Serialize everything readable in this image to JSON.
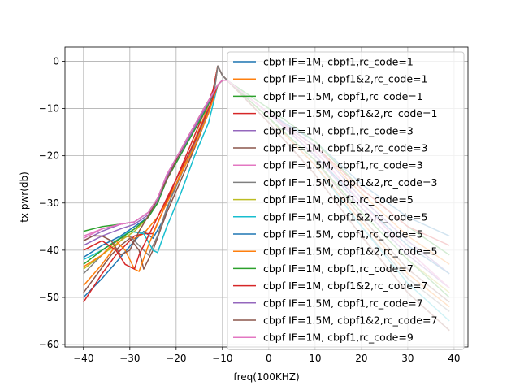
{
  "chart_data": {
    "type": "line",
    "xlabel": "freq(100KHZ)",
    "ylabel": "tx pwr(db)",
    "xlim": [
      -44,
      43
    ],
    "ylim": [
      -60.5,
      3
    ],
    "xticks": [
      -40,
      -30,
      -20,
      -10,
      0,
      10,
      20,
      30,
      40
    ],
    "yticks": [
      0,
      -10,
      -20,
      -30,
      -40,
      -50,
      -60
    ],
    "grid": true,
    "legend_position": "upper right",
    "series": [
      {
        "name": "cbpf IF=1M, cbpf1,rc_code=1",
        "color": "#1f77b4",
        "x": [
          -40,
          -36,
          -32,
          -29,
          -27,
          -25,
          -23,
          -20,
          -17,
          -14,
          -12,
          -11,
          -10,
          -9,
          0,
          10,
          20,
          30,
          39
        ],
        "y": [
          -50,
          -46,
          -41.5,
          -38,
          -36,
          -37.5,
          -34,
          -26,
          -19,
          -12,
          -6,
          -1,
          -3,
          -4,
          -11,
          -17,
          -26,
          -33,
          -37
        ]
      },
      {
        "name": "cbpf IF=1M, cbpf1&2,rc_code=1",
        "color": "#ff7f0e",
        "x": [
          -40,
          -36,
          -33,
          -31,
          -29,
          -27,
          -24,
          -20,
          -17,
          -14,
          -12,
          -11,
          -10,
          -9,
          0,
          10,
          20,
          30,
          39
        ],
        "y": [
          -47.5,
          -43,
          -39,
          -37,
          -37.5,
          -36.5,
          -33,
          -26,
          -19,
          -12,
          -6,
          -1,
          -3,
          -4,
          -11,
          -18,
          -28,
          -37,
          -43
        ]
      },
      {
        "name": "cbpf IF=1.5M, cbpf1,rc_code=1",
        "color": "#2ca02c",
        "x": [
          -40,
          -36,
          -32,
          -29,
          -26,
          -24,
          -22,
          -18,
          -14,
          -11,
          -10,
          -9,
          0,
          10,
          20,
          30,
          39
        ],
        "y": [
          -36,
          -35,
          -34.5,
          -34,
          -32,
          -29,
          -24,
          -17,
          -10,
          -5,
          -4,
          -4,
          -10,
          -17,
          -27,
          -35,
          -41
        ]
      },
      {
        "name": "cbpf IF=1.5M, cbpf1&2,rc_code=1",
        "color": "#d62728",
        "x": [
          -40,
          -38,
          -36,
          -33,
          -31,
          -29,
          -27,
          -25,
          -23,
          -20,
          -17,
          -14,
          -12,
          -11,
          -10,
          -9,
          0,
          10,
          20,
          30,
          39
        ],
        "y": [
          -51,
          -48,
          -45,
          -41,
          -39,
          -37,
          -36.5,
          -36.5,
          -32,
          -25,
          -18,
          -11,
          -6,
          -1,
          -3,
          -4,
          -11,
          -18,
          -27,
          -35,
          -39
        ]
      },
      {
        "name": "cbpf IF=1M, cbpf1,rc_code=3",
        "color": "#9467bd",
        "x": [
          -40,
          -36,
          -32,
          -29,
          -26,
          -24,
          -22,
          -18,
          -14,
          -11,
          -10,
          -9,
          0,
          10,
          20,
          30,
          39
        ],
        "y": [
          -38,
          -36,
          -34.5,
          -34,
          -32,
          -29,
          -24,
          -17,
          -10,
          -5,
          -4,
          -4,
          -11,
          -18,
          -29,
          -38,
          -45
        ]
      },
      {
        "name": "cbpf IF=1M, cbpf1&2,rc_code=3",
        "color": "#8c564b",
        "x": [
          -40,
          -37,
          -34,
          -32,
          -30,
          -28,
          -27,
          -25,
          -22,
          -18,
          -15,
          -12,
          -11,
          -10,
          -9,
          0,
          10,
          20,
          30,
          39
        ],
        "y": [
          -49,
          -45,
          -41,
          -39,
          -37.5,
          -40,
          -44,
          -40,
          -32,
          -23,
          -16,
          -8,
          -1,
          -3,
          -4,
          -12,
          -21,
          -33,
          -44,
          -51
        ]
      },
      {
        "name": "cbpf IF=1.5M, cbpf1,rc_code=3",
        "color": "#e377c2",
        "x": [
          -40,
          -36,
          -32,
          -29,
          -26,
          -24,
          -22,
          -18,
          -14,
          -11,
          -10,
          -9,
          0,
          10,
          20,
          30,
          39
        ],
        "y": [
          -37.5,
          -35.5,
          -34.5,
          -34,
          -32,
          -29,
          -24,
          -17,
          -10,
          -5,
          -4,
          -4,
          -11,
          -19,
          -30,
          -40,
          -48
        ]
      },
      {
        "name": "cbpf IF=1.5M, cbpf1&2,rc_code=3",
        "color": "#7f7f7f",
        "x": [
          -40,
          -37,
          -34,
          -32,
          -30,
          -28,
          -26,
          -24,
          -22,
          -18,
          -15,
          -12,
          -11,
          -10,
          -9,
          0,
          10,
          20,
          30,
          39
        ],
        "y": [
          -45,
          -42,
          -39,
          -37.5,
          -37,
          -39,
          -41,
          -37,
          -31,
          -22,
          -15,
          -8,
          -1,
          -3,
          -4,
          -12,
          -22,
          -35,
          -46,
          -53
        ]
      },
      {
        "name": "cbpf IF=1M, cbpf1,rc_code=5",
        "color": "#bcbd22",
        "x": [
          -40,
          -36,
          -32,
          -29,
          -26,
          -24,
          -22,
          -18,
          -14,
          -11,
          -10,
          -9,
          0,
          10,
          20,
          30,
          39
        ],
        "y": [
          -44,
          -41,
          -38,
          -36,
          -33,
          -30,
          -25,
          -18,
          -11,
          -5,
          -4,
          -4,
          -12,
          -21,
          -32,
          -42,
          -49
        ]
      },
      {
        "name": "cbpf IF=1M, cbpf1&2,rc_code=5",
        "color": "#17becf",
        "x": [
          -40,
          -36,
          -33,
          -30,
          -27,
          -25,
          -24,
          -22,
          -19,
          -16,
          -13,
          -11,
          -10,
          -9,
          0,
          10,
          20,
          30,
          39
        ],
        "y": [
          -42,
          -40,
          -38,
          -36,
          -36.5,
          -40,
          -40.5,
          -35,
          -28,
          -20,
          -13,
          -5,
          -4,
          -4,
          -12,
          -22,
          -35,
          -47,
          -55
        ]
      },
      {
        "name": "cbpf IF=1.5M, cbpf1,rc_code=5",
        "color": "#1f77b4",
        "x": [
          -40,
          -36,
          -32,
          -29,
          -26,
          -24,
          -22,
          -18,
          -14,
          -11,
          -10,
          -9,
          0,
          10,
          20,
          30,
          39
        ],
        "y": [
          -41.5,
          -39,
          -37,
          -35,
          -33,
          -30,
          -25,
          -18,
          -11,
          -5,
          -4,
          -4,
          -11,
          -20,
          -30,
          -39,
          -45
        ]
      },
      {
        "name": "cbpf IF=1.5M, cbpf1&2,rc_code=5",
        "color": "#ff7f0e",
        "x": [
          -40,
          -36,
          -33,
          -31,
          -29,
          -28,
          -26,
          -23,
          -20,
          -16,
          -13,
          -11,
          -10,
          -9,
          0,
          10,
          20,
          30,
          39
        ],
        "y": [
          -43.5,
          -41,
          -38,
          -40,
          -44,
          -44.5,
          -39,
          -32,
          -26,
          -18,
          -11,
          -5,
          -4,
          -4,
          -12,
          -22,
          -34,
          -45,
          -52
        ]
      },
      {
        "name": "cbpf IF=1M, cbpf1,rc_code=7",
        "color": "#2ca02c",
        "x": [
          -40,
          -36,
          -32,
          -29,
          -26,
          -24,
          -22,
          -18,
          -14,
          -11,
          -10,
          -9,
          0,
          10,
          20,
          30,
          39
        ],
        "y": [
          -43,
          -40,
          -37.5,
          -35.5,
          -33,
          -30,
          -25,
          -18,
          -11,
          -5,
          -4,
          -4,
          -12,
          -21,
          -32,
          -42,
          -50
        ]
      },
      {
        "name": "cbpf IF=1M, cbpf1&2,rc_code=7",
        "color": "#d62728",
        "x": [
          -40,
          -36,
          -33,
          -31,
          -29,
          -28,
          -26,
          -23,
          -20,
          -16,
          -13,
          -11,
          -10,
          -9,
          0,
          10,
          20,
          30,
          39
        ],
        "y": [
          -40,
          -38,
          -40,
          -43,
          -44,
          -41,
          -37,
          -31,
          -25,
          -17,
          -10,
          -5,
          -4,
          -4,
          -13,
          -24,
          -37,
          -49,
          -57
        ]
      },
      {
        "name": "cbpf IF=1.5M, cbpf1,rc_code=7",
        "color": "#9467bd",
        "x": [
          -40,
          -36,
          -32,
          -29,
          -26,
          -24,
          -22,
          -18,
          -14,
          -11,
          -10,
          -9,
          0,
          10,
          20,
          30,
          39
        ],
        "y": [
          -39,
          -37,
          -35.5,
          -34.5,
          -32.5,
          -29.5,
          -24.5,
          -17.5,
          -10.5,
          -5,
          -4,
          -4,
          -11,
          -20,
          -31,
          -41,
          -48
        ]
      },
      {
        "name": "cbpf IF=1.5M, cbpf1&2,rc_code=7",
        "color": "#8c564b",
        "x": [
          -40,
          -38,
          -36,
          -34,
          -32,
          -30,
          -28,
          -25,
          -22,
          -18,
          -14,
          -11,
          -10,
          -9,
          0,
          10,
          20,
          30,
          39
        ],
        "y": [
          -38,
          -37,
          -37,
          -38,
          -41,
          -40,
          -36,
          -31,
          -25,
          -17,
          -10,
          -5,
          -4,
          -4,
          -13,
          -24,
          -37,
          -49,
          -57
        ]
      },
      {
        "name": "cbpf IF=1M, cbpf1,rc_code=9",
        "color": "#e377c2",
        "x": [
          -40,
          -36,
          -32,
          -29,
          -26,
          -24,
          -22,
          -18,
          -14,
          -11,
          -10,
          -9,
          0,
          10,
          20,
          30,
          39
        ],
        "y": [
          -37,
          -35.5,
          -34.5,
          -34,
          -32,
          -29,
          -24,
          -17,
          -10,
          -5,
          -4,
          -4,
          -11,
          -19,
          -30,
          -40,
          -48
        ]
      }
    ]
  }
}
